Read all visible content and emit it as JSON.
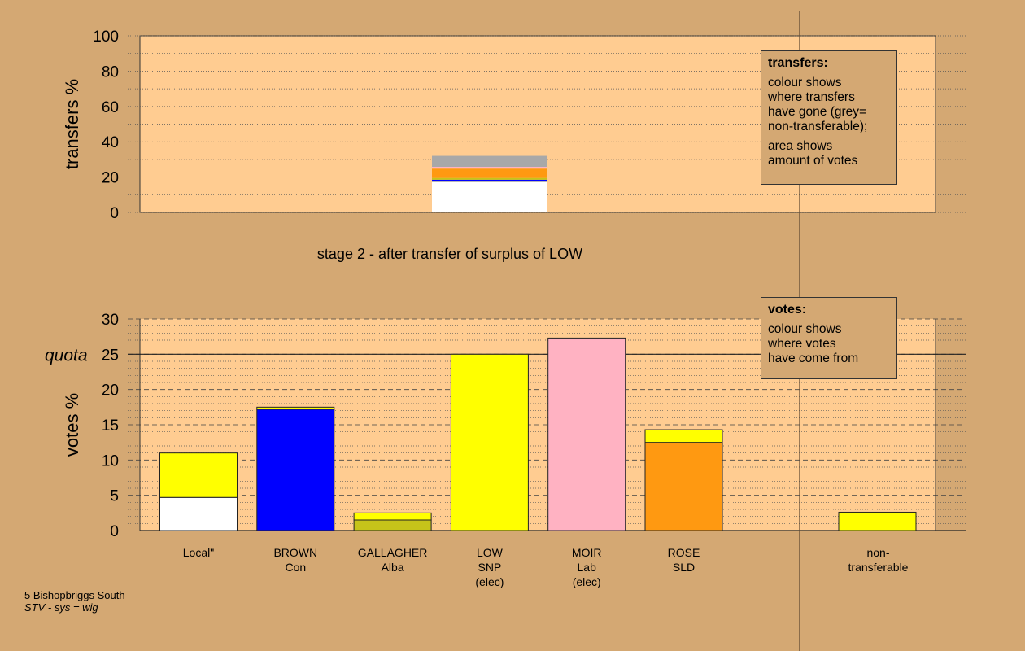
{
  "chart_data": [
    {
      "type": "bar",
      "stacked": true,
      "ylabel": "transfers %",
      "ylim": [
        0,
        100
      ],
      "yticks": [
        0,
        20,
        40,
        60,
        80,
        100
      ],
      "bars": [
        {
          "segments": [
            {
              "value": 17.5,
              "color": "#ffffff"
            },
            {
              "value": 1.0,
              "color": "#0000ff"
            },
            {
              "value": 1.0,
              "color": "#c6c41a"
            },
            {
              "value": 5.3,
              "color": "#ff9911"
            },
            {
              "value": 1.0,
              "color": "#ffb2c2"
            },
            {
              "value": 6.2,
              "color": "#a8a8a8"
            }
          ]
        }
      ],
      "caption": "stage 2 - after transfer of surplus of LOW",
      "legend": {
        "title": "transfers:",
        "para1": [
          "colour shows",
          "where transfers",
          "have gone (grey=",
          "non-transferable);"
        ],
        "para2": [
          "area shows",
          "amount of votes"
        ]
      },
      "grid": "dotted"
    },
    {
      "type": "bar",
      "stacked": true,
      "ylabel": "votes %",
      "ylim": [
        0,
        30
      ],
      "yticks": [
        0,
        5,
        10,
        15,
        20,
        25,
        30
      ],
      "quota": {
        "value": 25,
        "label": "quota"
      },
      "categories": [
        {
          "lines": [
            "Local\""
          ],
          "segments": [
            {
              "value": 4.7,
              "color": "#ffffff"
            },
            {
              "value": 6.3,
              "color": "#ffff00"
            }
          ]
        },
        {
          "lines": [
            "BROWN",
            "Con"
          ],
          "segments": [
            {
              "value": 17.2,
              "color": "#0000ff"
            },
            {
              "value": 0.3,
              "color": "#ffff00"
            }
          ]
        },
        {
          "lines": [
            "GALLAGHER",
            "Alba"
          ],
          "segments": [
            {
              "value": 1.5,
              "color": "#c6c41a"
            },
            {
              "value": 1.0,
              "color": "#ffff00"
            }
          ]
        },
        {
          "lines": [
            "LOW",
            "SNP",
            "(elec)"
          ],
          "segments": [
            {
              "value": 25.0,
              "color": "#ffff00"
            }
          ]
        },
        {
          "lines": [
            "MOIR",
            "Lab",
            "(elec)"
          ],
          "segments": [
            {
              "value": 27.3,
              "color": "#ffb2c2"
            }
          ]
        },
        {
          "lines": [
            "ROSE",
            "SLD"
          ],
          "segments": [
            {
              "value": 12.5,
              "color": "#ff9911"
            },
            {
              "value": 1.8,
              "color": "#ffff00"
            }
          ]
        }
      ],
      "nontransferable": {
        "lines": [
          "non-",
          "transferable"
        ],
        "segments": [
          {
            "value": 2.6,
            "color": "#ffff00"
          }
        ]
      },
      "legend": {
        "title": "votes:",
        "para1": [
          "colour shows",
          "where votes",
          "have come from"
        ]
      },
      "grid": "dashed-dotted"
    }
  ],
  "footer": {
    "place": "5 Bishopbriggs South",
    "system": "STV - sys = wig"
  },
  "colors": {
    "background": "#d4a873",
    "plot_fill": "#ffcc91"
  }
}
